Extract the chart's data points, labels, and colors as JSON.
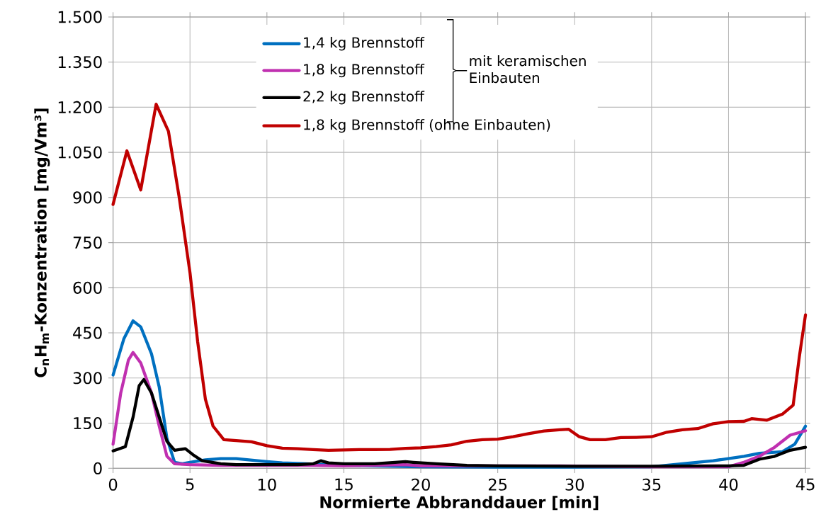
{
  "chart_data": {
    "type": "line",
    "xlabel": "Normierte Abbranddauer [min]",
    "ylabel": "C$_{n}$H$_{m}$-Konzentration [mg/Vm³]",
    "xlim": [
      0,
      45
    ],
    "xticks": [
      0,
      5,
      10,
      15,
      20,
      25,
      30,
      35,
      40,
      45
    ],
    "ylim": [
      0,
      1500
    ],
    "yticks": [
      0,
      150,
      300,
      450,
      600,
      750,
      900,
      {
        "value": 1050,
        "label": "1.050"
      },
      {
        "value": 1200,
        "label": "1.200"
      },
      {
        "value": 1350,
        "label": "1.350"
      },
      {
        "value": 1500,
        "label": "1.500"
      }
    ],
    "grid": true,
    "legend": "top",
    "line_style": "solid",
    "marker": "none",
    "annotations": [
      "mit keramischen Einbauten"
    ],
    "series": [
      {
        "name": "1,4 kg Brennstoff",
        "color": "#0070c0",
        "x": [
          0,
          0.7,
          1.3,
          1.8,
          2.5,
          3,
          3.5,
          4,
          4.5,
          5,
          6,
          7,
          8,
          9,
          10,
          11,
          12,
          13,
          14,
          15,
          17,
          20,
          25,
          30,
          35,
          37,
          39,
          41,
          42,
          43.5,
          44.3,
          45
        ],
        "values": [
          310,
          430,
          490,
          470,
          380,
          270,
          100,
          20,
          15,
          20,
          28,
          32,
          32,
          27,
          22,
          18,
          16,
          14,
          12,
          10,
          8,
          5,
          4,
          4,
          5,
          15,
          25,
          40,
          50,
          55,
          80,
          140
        ]
      },
      {
        "name": "1,8 kg Brennstoff",
        "color": "#c030b0",
        "x": [
          0,
          0.5,
          1,
          1.3,
          1.8,
          2.5,
          3,
          3.5,
          4,
          5,
          7,
          10,
          13,
          15,
          19,
          20,
          25,
          29,
          35,
          40,
          41,
          42,
          43,
          44,
          45
        ],
        "values": [
          80,
          250,
          360,
          385,
          350,
          250,
          140,
          40,
          15,
          12,
          10,
          10,
          10,
          8,
          12,
          8,
          null,
          8,
          5,
          5,
          20,
          40,
          70,
          110,
          125
        ]
      },
      {
        "name": "2,2 kg Brennstoff",
        "color": "#000000",
        "x": [
          0,
          0.8,
          1.3,
          1.7,
          2,
          2.5,
          3,
          3.5,
          4,
          4.7,
          5.2,
          5.8,
          7,
          8,
          10,
          12,
          13,
          13.5,
          14,
          15,
          17,
          19,
          19.5,
          21,
          23,
          25,
          30,
          35,
          40,
          41,
          42,
          43,
          44,
          45
        ],
        "values": [
          58,
          72,
          170,
          275,
          295,
          250,
          170,
          90,
          60,
          65,
          45,
          25,
          15,
          12,
          12,
          12,
          15,
          25,
          18,
          15,
          15,
          22,
          20,
          15,
          10,
          8,
          7,
          7,
          8,
          10,
          30,
          40,
          60,
          70
        ]
      },
      {
        "name": "1,8 kg Brennstoff (ohne Einbauten)",
        "color": "#c00000",
        "x": [
          0,
          0.9,
          1.8,
          2.8,
          3.6,
          4.3,
          5,
          5.5,
          6,
          6.5,
          7.2,
          8,
          9,
          10,
          11,
          12,
          13,
          14,
          15,
          16,
          17,
          18,
          19,
          20,
          21,
          22,
          23,
          24,
          25,
          26,
          27,
          28,
          29,
          29.6,
          30.3,
          31,
          32,
          33,
          34,
          35,
          36,
          37,
          38,
          39,
          40,
          41,
          41.5,
          42.5,
          43.5,
          44.2,
          44.6,
          45
        ],
        "values": [
          877,
          1055,
          925,
          1210,
          1120,
          900,
          650,
          420,
          230,
          140,
          95,
          92,
          88,
          75,
          67,
          65,
          62,
          60,
          61,
          62,
          62,
          63,
          66,
          68,
          72,
          78,
          90,
          95,
          97,
          105,
          115,
          124,
          128,
          130,
          105,
          95,
          95,
          102,
          103,
          105,
          120,
          128,
          132,
          148,
          155,
          156,
          165,
          160,
          180,
          210,
          370,
          510
        ]
      }
    ]
  }
}
